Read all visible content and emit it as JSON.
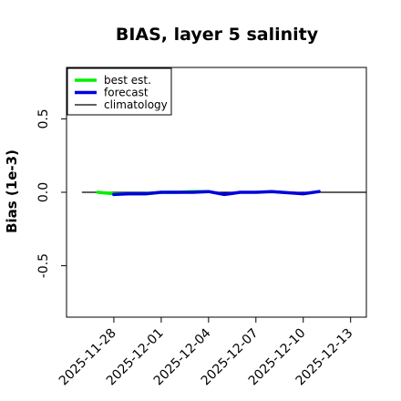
{
  "chart_data": {
    "type": "line",
    "title": "BIAS, layer 5 salinity",
    "xlabel": "",
    "ylabel": "Bias (1e-3)",
    "xlim": [
      "2025-11-25",
      "2025-12-14"
    ],
    "ylim": [
      -0.85,
      0.85
    ],
    "y_ticks": [
      -0.5,
      0.0,
      0.5
    ],
    "y_tick_labels": [
      "-0.5",
      "0.0",
      "0.5"
    ],
    "x_ticks": [
      "2025-11-28",
      "2025-12-01",
      "2025-12-04",
      "2025-12-07",
      "2025-12-10",
      "2025-12-13"
    ],
    "x_tick_colors": [
      "#000000",
      "#000000",
      "#228b22",
      "#000000",
      "#000000",
      "#000000"
    ],
    "grid": false,
    "legend_position": "top-left",
    "series": [
      {
        "name": "best est.",
        "color": "#00ee00",
        "style": "thick",
        "points": [
          [
            "2025-11-27",
            0.0
          ],
          [
            "2025-11-28",
            -0.01
          ],
          [
            "2025-11-29",
            -0.01
          ],
          [
            "2025-11-30",
            -0.01
          ],
          [
            "2025-12-01",
            0.0
          ],
          [
            "2025-12-02",
            0.0
          ],
          [
            "2025-12-03",
            0.005
          ],
          [
            "2025-12-04",
            0.005
          ]
        ]
      },
      {
        "name": "forecast",
        "color": "#0000dd",
        "style": "thick",
        "points": [
          [
            "2025-11-28",
            -0.015
          ],
          [
            "2025-11-29",
            -0.01
          ],
          [
            "2025-11-30",
            -0.01
          ],
          [
            "2025-12-01",
            0.0
          ],
          [
            "2025-12-02",
            0.0
          ],
          [
            "2025-12-03",
            0.0
          ],
          [
            "2025-12-04",
            0.005
          ],
          [
            "2025-12-05",
            -0.015
          ],
          [
            "2025-12-06",
            0.0
          ],
          [
            "2025-12-07",
            0.0
          ],
          [
            "2025-12-08",
            0.005
          ],
          [
            "2025-12-10",
            -0.01
          ],
          [
            "2025-12-11",
            0.005
          ]
        ]
      },
      {
        "name": "climatology",
        "color": "#000000",
        "style": "thin",
        "points": [
          [
            "2025-11-26",
            0.0
          ],
          [
            "2025-12-14",
            0.0
          ]
        ]
      }
    ]
  }
}
